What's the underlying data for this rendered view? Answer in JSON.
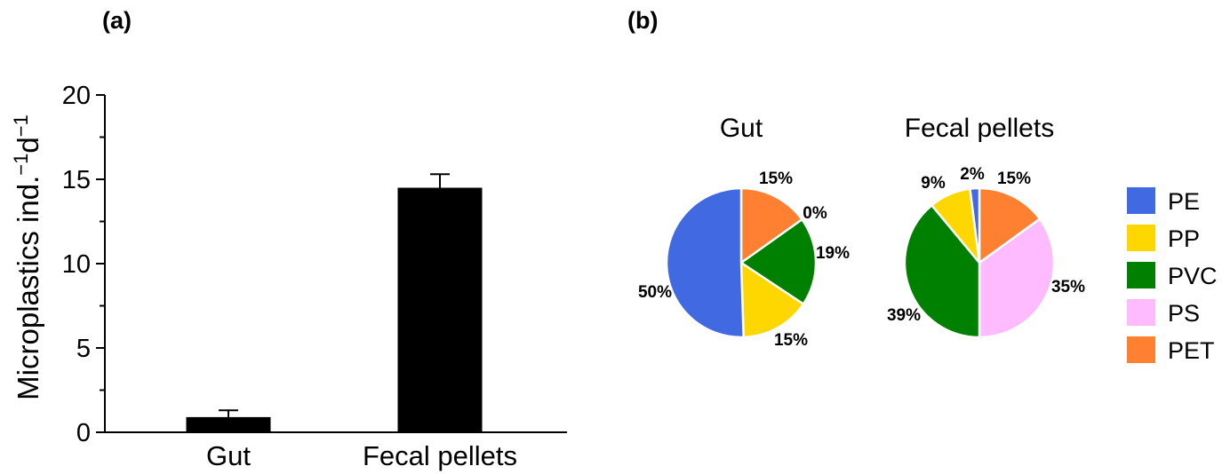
{
  "panels": {
    "a": "(a)",
    "b": "(b)"
  },
  "colors": {
    "PE": "#4169e1",
    "PP": "#ffd700",
    "PVC": "#008000",
    "PS": "#ffbbff",
    "PET": "#ff8030"
  },
  "chart_data": [
    {
      "type": "bar",
      "categories": [
        "Gut",
        "Fecal pellets"
      ],
      "values": [
        0.9,
        14.5
      ],
      "errors": [
        0.4,
        0.8
      ],
      "ylabel": "Microplastics ind.",
      "ylabel_sup1": "−1",
      "ylabel_mid": "d",
      "ylabel_sup2": "−1",
      "ylim": [
        0,
        20
      ],
      "yticks": [
        0,
        5,
        10,
        15,
        20
      ],
      "bar_color": "#000000",
      "grid": false
    },
    {
      "type": "pie",
      "title": "Gut",
      "slices": [
        {
          "name": "PET",
          "value": 15,
          "label": "15%"
        },
        {
          "name": "PS",
          "value": 0,
          "label": "0%"
        },
        {
          "name": "PVC",
          "value": 19,
          "label": "19%"
        },
        {
          "name": "PP",
          "value": 15,
          "label": "15%"
        },
        {
          "name": "PE",
          "value": 50,
          "label": "50%"
        }
      ]
    },
    {
      "type": "pie",
      "title": "Fecal pellets",
      "slices": [
        {
          "name": "PET",
          "value": 15,
          "label": "15%"
        },
        {
          "name": "PS",
          "value": 35,
          "label": "35%"
        },
        {
          "name": "PVC",
          "value": 39,
          "label": "39%"
        },
        {
          "name": "PP",
          "value": 9,
          "label": "9%"
        },
        {
          "name": "PE",
          "value": 2,
          "label": "2%"
        }
      ]
    }
  ],
  "legend": {
    "position": "right",
    "entries": [
      "PE",
      "PP",
      "PVC",
      "PS",
      "PET"
    ]
  }
}
